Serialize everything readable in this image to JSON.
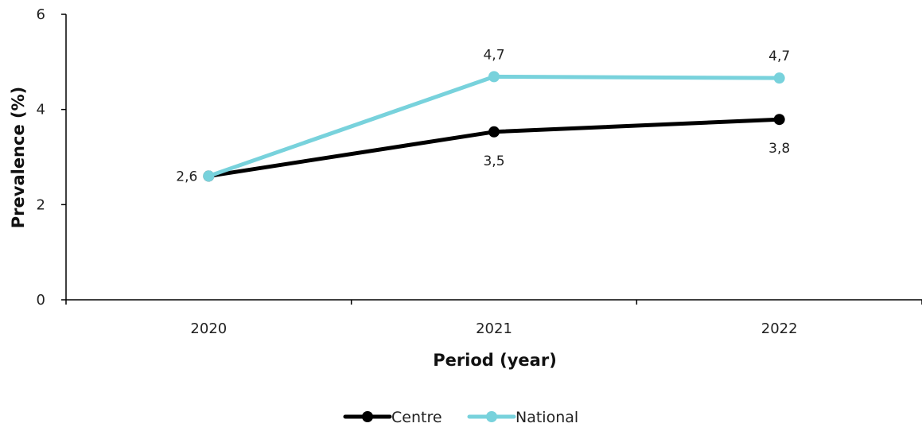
{
  "chart_data": {
    "type": "line",
    "x": [
      "2020",
      "2021",
      "2022"
    ],
    "xlabel": "Period (year)",
    "ylabel": "Prevalence (%)",
    "ylim": [
      0,
      6
    ],
    "yticks": [
      "0",
      "2",
      "4",
      "6"
    ],
    "grid": false,
    "legend_position": "bottom-center",
    "series": [
      {
        "name": "Centre",
        "color": "#000000",
        "values": [
          2.6,
          3.53,
          3.79
        ],
        "labels": [
          "2,6",
          "3,5",
          "3,8"
        ]
      },
      {
        "name": "National",
        "color": "#78D2DC",
        "values": [
          2.6,
          4.69,
          4.66
        ],
        "labels": [
          "",
          "4,7",
          "4,7"
        ]
      }
    ]
  }
}
